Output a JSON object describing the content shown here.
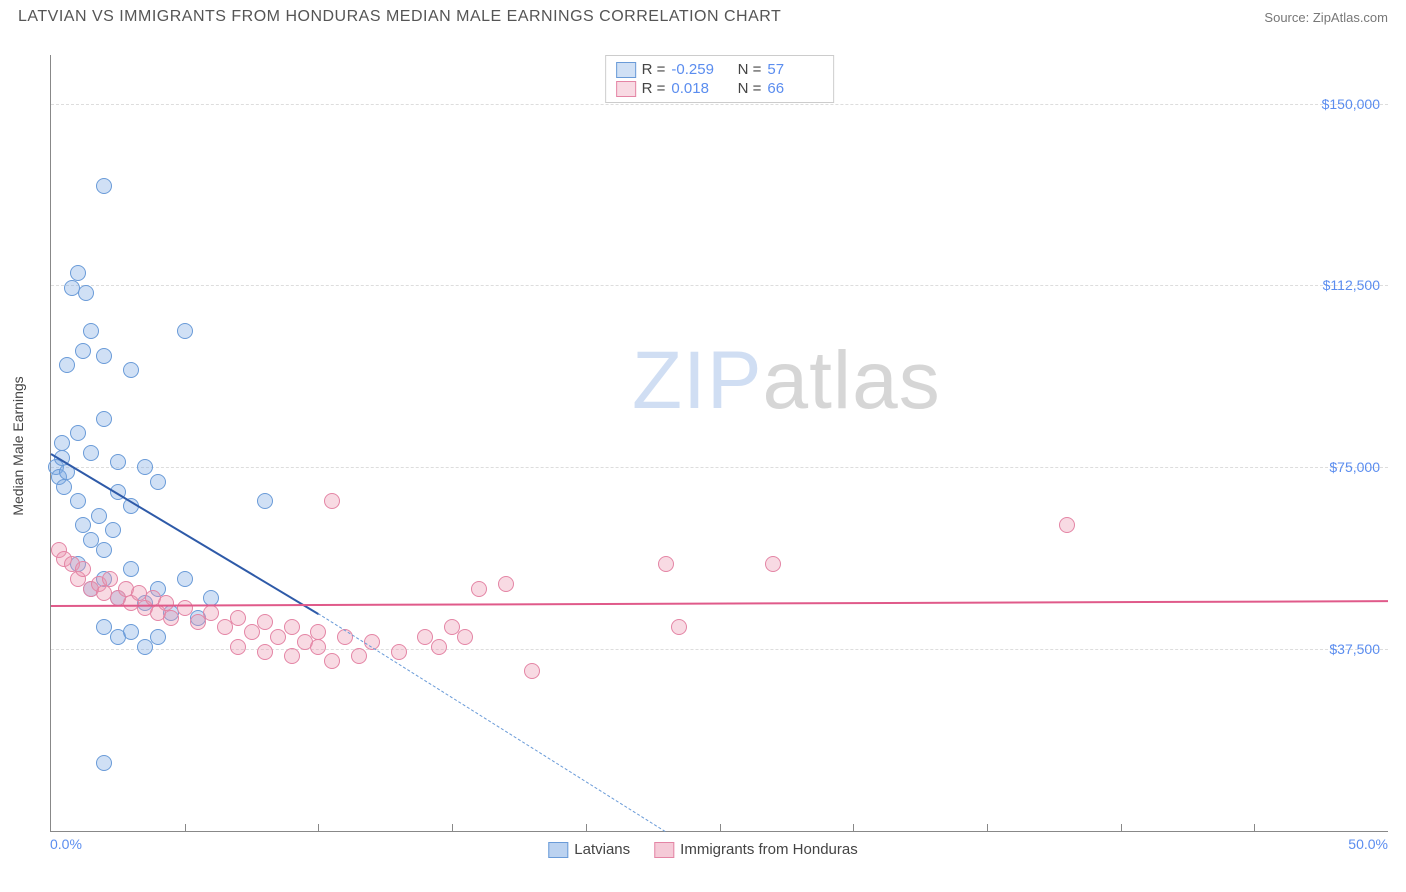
{
  "title": "LATVIAN VS IMMIGRANTS FROM HONDURAS MEDIAN MALE EARNINGS CORRELATION CHART",
  "source_label": "Source:",
  "source_name": "ZipAtlas.com",
  "y_axis_label": "Median Male Earnings",
  "chart": {
    "type": "scatter",
    "xlim": [
      0,
      50
    ],
    "ylim": [
      0,
      160000
    ],
    "x_min_label": "0.0%",
    "x_max_label": "50.0%",
    "y_ticks": [
      37500,
      75000,
      112500,
      150000
    ],
    "y_tick_labels": [
      "$37,500",
      "$75,000",
      "$112,500",
      "$150,000"
    ],
    "x_tick_positions": [
      5,
      10,
      15,
      20,
      25,
      30,
      35,
      40,
      45
    ],
    "grid_color": "#dddddd",
    "background_color": "#ffffff",
    "marker_radius": 8,
    "series": [
      {
        "name": "Latvians",
        "fill": "rgba(120,165,225,0.35)",
        "stroke": "#6a9bd8",
        "trend_color": "#2e5aa8",
        "trend_dash_color": "#6a9bd8",
        "R": "-0.259",
        "N": "57",
        "trend": {
          "x1": 0,
          "y1": 78000,
          "x2": 10,
          "y2": 45000
        },
        "trend_dash": {
          "x1": 10,
          "y1": 45000,
          "x2": 23,
          "y2": 0
        },
        "points": [
          [
            0.2,
            75000
          ],
          [
            0.3,
            73000
          ],
          [
            0.4,
            77000
          ],
          [
            0.5,
            71000
          ],
          [
            0.4,
            80000
          ],
          [
            0.6,
            74000
          ],
          [
            0.8,
            112000
          ],
          [
            1.0,
            115000
          ],
          [
            1.3,
            111000
          ],
          [
            2.0,
            133000
          ],
          [
            0.6,
            96000
          ],
          [
            1.2,
            99000
          ],
          [
            1.5,
            103000
          ],
          [
            2.0,
            98000
          ],
          [
            3.0,
            95000
          ],
          [
            1.0,
            82000
          ],
          [
            1.5,
            78000
          ],
          [
            2.0,
            85000
          ],
          [
            2.5,
            76000
          ],
          [
            5.0,
            103000
          ],
          [
            1.0,
            68000
          ],
          [
            1.2,
            63000
          ],
          [
            1.5,
            60000
          ],
          [
            1.8,
            65000
          ],
          [
            2.0,
            58000
          ],
          [
            2.3,
            62000
          ],
          [
            2.5,
            70000
          ],
          [
            3.0,
            67000
          ],
          [
            3.5,
            75000
          ],
          [
            4.0,
            72000
          ],
          [
            1.0,
            55000
          ],
          [
            1.5,
            50000
          ],
          [
            2.0,
            52000
          ],
          [
            2.5,
            48000
          ],
          [
            3.0,
            54000
          ],
          [
            3.5,
            47000
          ],
          [
            4.0,
            50000
          ],
          [
            4.5,
            45000
          ],
          [
            5.0,
            52000
          ],
          [
            5.5,
            44000
          ],
          [
            6.0,
            48000
          ],
          [
            8.0,
            68000
          ],
          [
            2.0,
            42000
          ],
          [
            2.5,
            40000
          ],
          [
            3.0,
            41000
          ],
          [
            3.5,
            38000
          ],
          [
            4.0,
            40000
          ],
          [
            2.0,
            14000
          ]
        ]
      },
      {
        "name": "Immigrants from Honduras",
        "fill": "rgba(235,150,175,0.35)",
        "stroke": "#e485a5",
        "trend_color": "#e05a8a",
        "R": "0.018",
        "N": "66",
        "trend": {
          "x1": 0,
          "y1": 46500,
          "x2": 50,
          "y2": 47500
        },
        "points": [
          [
            0.3,
            58000
          ],
          [
            0.5,
            56000
          ],
          [
            0.8,
            55000
          ],
          [
            1.0,
            52000
          ],
          [
            1.2,
            54000
          ],
          [
            1.5,
            50000
          ],
          [
            1.8,
            51000
          ],
          [
            2.0,
            49000
          ],
          [
            2.2,
            52000
          ],
          [
            2.5,
            48000
          ],
          [
            2.8,
            50000
          ],
          [
            3.0,
            47000
          ],
          [
            3.3,
            49000
          ],
          [
            3.5,
            46000
          ],
          [
            3.8,
            48000
          ],
          [
            4.0,
            45000
          ],
          [
            4.3,
            47000
          ],
          [
            4.5,
            44000
          ],
          [
            5.0,
            46000
          ],
          [
            5.5,
            43000
          ],
          [
            6.0,
            45000
          ],
          [
            6.5,
            42000
          ],
          [
            7.0,
            44000
          ],
          [
            7.5,
            41000
          ],
          [
            8.0,
            43000
          ],
          [
            8.5,
            40000
          ],
          [
            9.0,
            42000
          ],
          [
            9.5,
            39000
          ],
          [
            10.0,
            41000
          ],
          [
            10.5,
            68000
          ],
          [
            7.0,
            38000
          ],
          [
            8.0,
            37000
          ],
          [
            9.0,
            36000
          ],
          [
            10.0,
            38000
          ],
          [
            10.5,
            35000
          ],
          [
            11.0,
            40000
          ],
          [
            11.5,
            36000
          ],
          [
            12.0,
            39000
          ],
          [
            13.0,
            37000
          ],
          [
            14.0,
            40000
          ],
          [
            14.5,
            38000
          ],
          [
            15.0,
            42000
          ],
          [
            15.5,
            40000
          ],
          [
            16.0,
            50000
          ],
          [
            17.0,
            51000
          ],
          [
            18.0,
            33000
          ],
          [
            23.0,
            55000
          ],
          [
            23.5,
            42000
          ],
          [
            27.0,
            55000
          ],
          [
            38.0,
            63000
          ]
        ]
      }
    ]
  },
  "bottom_legend": {
    "items": [
      {
        "label": "Latvians",
        "fill": "rgba(120,165,225,0.5)",
        "stroke": "#6a9bd8"
      },
      {
        "label": "Immigrants from Honduras",
        "fill": "rgba(235,150,175,0.5)",
        "stroke": "#e485a5"
      }
    ]
  },
  "watermark": {
    "part1": "ZIP",
    "part2": "atlas"
  }
}
